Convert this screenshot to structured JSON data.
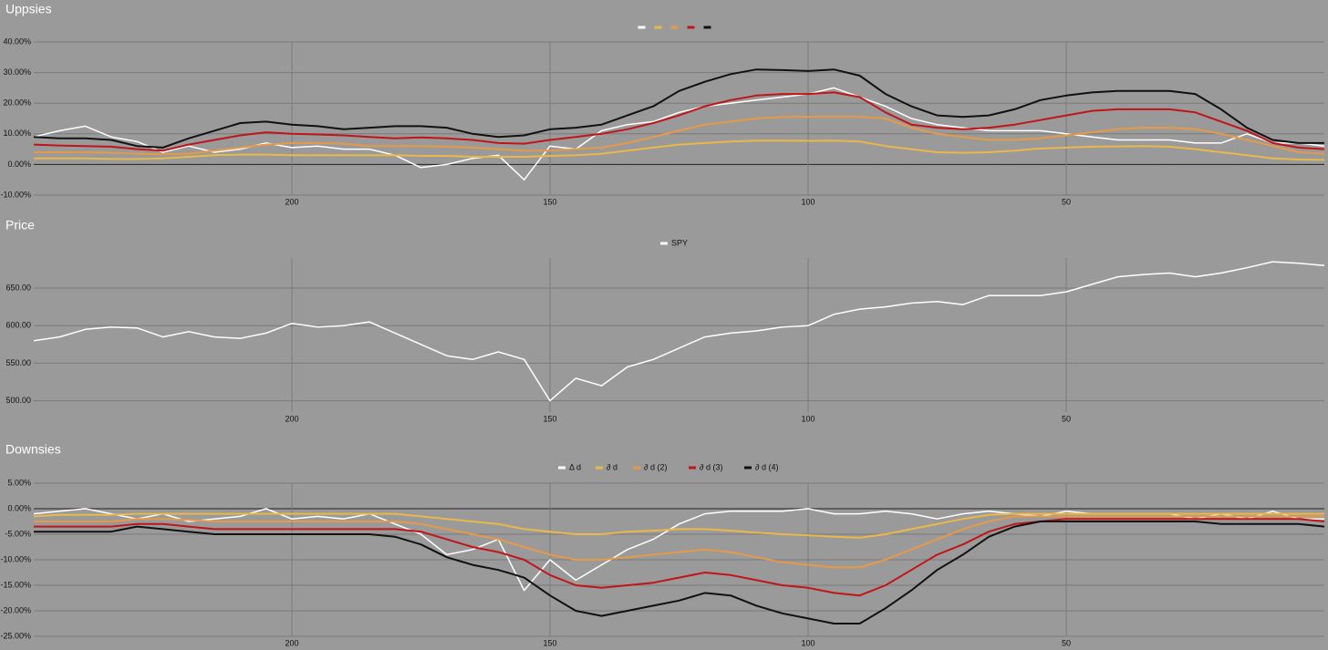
{
  "chart_data": [
    {
      "type": "line",
      "title": "Uppsies",
      "x": [
        250,
        245,
        240,
        235,
        230,
        225,
        220,
        215,
        210,
        205,
        200,
        195,
        190,
        185,
        180,
        175,
        170,
        165,
        160,
        155,
        150,
        145,
        140,
        135,
        130,
        125,
        120,
        115,
        110,
        105,
        100,
        95,
        90,
        85,
        80,
        75,
        70,
        65,
        60,
        55,
        50,
        45,
        40,
        35,
        30,
        25,
        20,
        15,
        10,
        5,
        0
      ],
      "xlim": [
        250,
        0
      ],
      "xticks": [
        200,
        150,
        100,
        50
      ],
      "ylim": [
        -10,
        40
      ],
      "yticks": [
        {
          "value": -10,
          "label": "-10.00%"
        },
        {
          "value": 0,
          "label": "0.00%"
        },
        {
          "value": 10,
          "label": "10.00%"
        },
        {
          "value": 20,
          "label": "20.00%"
        },
        {
          "value": 30,
          "label": "30.00%"
        },
        {
          "value": 40,
          "label": "40.00%"
        }
      ],
      "grid": true,
      "zero_line": true,
      "series": [
        {
          "color": "#ffffff",
          "values": [
            9,
            11,
            12.5,
            9,
            7.5,
            4,
            6,
            4,
            5,
            7,
            5.5,
            6,
            5,
            5,
            3,
            -1,
            0,
            2,
            3,
            -5,
            6,
            5,
            11,
            13,
            14,
            17,
            19,
            20,
            21,
            22,
            23,
            25,
            22,
            19,
            15,
            13,
            12,
            11,
            11,
            11,
            10,
            9,
            8,
            8,
            8,
            7,
            7,
            10,
            7,
            7,
            6
          ]
        },
        {
          "color": "#e8b84a",
          "values": [
            2,
            2,
            2,
            1.8,
            1.8,
            2,
            2.5,
            3,
            3.2,
            3.2,
            3,
            3,
            3,
            3,
            3,
            2.8,
            2.8,
            2.5,
            2.5,
            2.5,
            2.8,
            3,
            3.5,
            4.5,
            5.5,
            6.5,
            7,
            7.5,
            7.8,
            7.8,
            7.7,
            7.8,
            7.5,
            6,
            5,
            4,
            3.8,
            4,
            4.5,
            5.2,
            5.5,
            5.8,
            5.9,
            6,
            5.8,
            5,
            4,
            3,
            2,
            1.6,
            1.5
          ]
        },
        {
          "color": "#e59a4a",
          "values": [
            4,
            4,
            4,
            3.8,
            3.5,
            3.3,
            3.5,
            4.5,
            5.5,
            6.5,
            7,
            7,
            6.8,
            6,
            6,
            6,
            5.8,
            5.5,
            5,
            4.5,
            4.5,
            5,
            5.5,
            7,
            9,
            11,
            13,
            14,
            15,
            15.5,
            15.5,
            15.5,
            15.5,
            15,
            12,
            10,
            9,
            8,
            8,
            8.5,
            9.5,
            10.5,
            11.5,
            12,
            12,
            11.5,
            10,
            8,
            6,
            4,
            3.5
          ]
        },
        {
          "color": "#c0151a",
          "values": [
            6.5,
            6.2,
            6,
            5.8,
            5,
            4.5,
            6.5,
            8,
            9.5,
            10.5,
            10,
            9.8,
            9.5,
            9,
            8.5,
            8.8,
            8.5,
            8,
            7,
            6.8,
            8,
            9,
            10,
            11.5,
            13.5,
            16,
            19,
            21,
            22.5,
            23,
            23,
            23.5,
            22,
            17,
            13,
            12,
            11.5,
            12,
            13,
            14.5,
            16,
            17.5,
            18,
            18,
            18,
            17,
            14,
            11,
            7,
            5.5,
            5
          ]
        },
        {
          "color": "#111111",
          "values": [
            9,
            8.5,
            8.5,
            8,
            6,
            5.5,
            8.5,
            11,
            13.5,
            14,
            13,
            12.5,
            11.5,
            12,
            12.5,
            12.5,
            12,
            10,
            9,
            9.5,
            11.5,
            12,
            13,
            16,
            19,
            24,
            27,
            29.5,
            31,
            30.8,
            30.5,
            31,
            29,
            23,
            19,
            16,
            15.5,
            16,
            18,
            21,
            22.5,
            23.5,
            24,
            24,
            24,
            23,
            18,
            12,
            8,
            7,
            7
          ]
        }
      ]
    },
    {
      "type": "line",
      "title": "Price",
      "x": [
        250,
        245,
        240,
        235,
        230,
        225,
        220,
        215,
        210,
        205,
        200,
        195,
        190,
        185,
        180,
        175,
        170,
        165,
        160,
        155,
        150,
        145,
        140,
        135,
        130,
        125,
        120,
        115,
        110,
        105,
        100,
        95,
        90,
        85,
        80,
        75,
        70,
        65,
        60,
        55,
        50,
        45,
        40,
        35,
        30,
        25,
        20,
        15,
        10,
        5,
        0
      ],
      "xlim": [
        250,
        0
      ],
      "xticks": [
        200,
        150,
        100,
        50
      ],
      "ylim": [
        485,
        690
      ],
      "yticks": [
        {
          "value": 500,
          "label": "500.00"
        },
        {
          "value": 550,
          "label": "550.00"
        },
        {
          "value": 600,
          "label": "600.00"
        },
        {
          "value": 650,
          "label": "650.00"
        }
      ],
      "grid": true,
      "zero_line": false,
      "series": [
        {
          "name": "SPY",
          "color": "#ffffff",
          "values": [
            580,
            585,
            595,
            598,
            597,
            585,
            592,
            585,
            583,
            590,
            603,
            598,
            600,
            605,
            590,
            575,
            560,
            555,
            565,
            555,
            500,
            530,
            520,
            545,
            555,
            570,
            585,
            590,
            593,
            598,
            600,
            615,
            622,
            625,
            630,
            632,
            628,
            640,
            640,
            640,
            645,
            655,
            665,
            668,
            670,
            665,
            670,
            677,
            685,
            683,
            680
          ]
        }
      ]
    },
    {
      "type": "line",
      "title": "Downsies",
      "x": [
        250,
        245,
        240,
        235,
        230,
        225,
        220,
        215,
        210,
        205,
        200,
        195,
        190,
        185,
        180,
        175,
        170,
        165,
        160,
        155,
        150,
        145,
        140,
        135,
        130,
        125,
        120,
        115,
        110,
        105,
        100,
        95,
        90,
        85,
        80,
        75,
        70,
        65,
        60,
        55,
        50,
        45,
        40,
        35,
        30,
        25,
        20,
        15,
        10,
        5,
        0
      ],
      "xlim": [
        250,
        0
      ],
      "xticks": [
        200,
        150,
        100,
        50
      ],
      "ylim": [
        -25,
        5
      ],
      "yticks": [
        {
          "value": -25,
          "label": "-25.00%"
        },
        {
          "value": -20,
          "label": "-20.00%"
        },
        {
          "value": -15,
          "label": "-15.00%"
        },
        {
          "value": -10,
          "label": "-10.00%"
        },
        {
          "value": -5,
          "label": "-5.00%"
        },
        {
          "value": 0,
          "label": "0.00%"
        },
        {
          "value": 5,
          "label": "5.00%"
        }
      ],
      "grid": true,
      "zero_line": true,
      "series": [
        {
          "name": "Δ d",
          "color": "#ffffff",
          "values": [
            -1,
            -0.5,
            0,
            -1,
            -2,
            -1,
            -2.5,
            -2,
            -1.5,
            0,
            -2,
            -1.5,
            -2,
            -1,
            -3,
            -5,
            -9,
            -8,
            -6,
            -16,
            -10,
            -14,
            -11,
            -8,
            -6,
            -3,
            -1,
            -0.5,
            -0.5,
            -0.5,
            0,
            -1,
            -1,
            -0.5,
            -1,
            -2,
            -1,
            -0.5,
            -1,
            -1.5,
            -0.5,
            -1,
            -1,
            -1,
            -1,
            -2,
            -1,
            -2,
            -0.5,
            -2,
            -2
          ]
        },
        {
          "name": "∂ d",
          "color": "#e8b84a",
          "values": [
            -1.5,
            -1.2,
            -1.2,
            -1.2,
            -1,
            -1,
            -1,
            -1,
            -1,
            -1,
            -1,
            -1,
            -1,
            -1,
            -1,
            -1.5,
            -2,
            -2.5,
            -3,
            -4,
            -4.5,
            -5,
            -5,
            -4.5,
            -4.3,
            -4,
            -4,
            -4.3,
            -4.7,
            -5,
            -5.2,
            -5.5,
            -5.7,
            -5,
            -4,
            -3,
            -2,
            -1.2,
            -1,
            -1,
            -1,
            -1,
            -1,
            -1,
            -1,
            -1,
            -1,
            -1,
            -1,
            -1,
            -1
          ]
        },
        {
          "name": "∂ d (2)",
          "color": "#e59a4a",
          "values": [
            -2.5,
            -2.5,
            -2.5,
            -2.5,
            -2,
            -2,
            -2.2,
            -2.5,
            -2.5,
            -2.5,
            -2.5,
            -2.5,
            -2.5,
            -2.5,
            -2.5,
            -3,
            -4,
            -5,
            -6,
            -7.5,
            -9,
            -10,
            -10,
            -9.5,
            -9,
            -8.5,
            -8,
            -8.5,
            -9.5,
            -10.5,
            -11,
            -11.5,
            -11.5,
            -10,
            -8,
            -6,
            -4,
            -2.5,
            -1.5,
            -1.5,
            -1.5,
            -1.5,
            -1.5,
            -1.5,
            -1.5,
            -1.5,
            -1.5,
            -1.5,
            -1.5,
            -1.5,
            -1.5
          ]
        },
        {
          "name": "∂ d (3)",
          "color": "#c0151a",
          "values": [
            -3.5,
            -3.5,
            -3.5,
            -3.5,
            -3,
            -3,
            -3.5,
            -4,
            -4,
            -4,
            -4,
            -4,
            -4,
            -4,
            -4,
            -4.5,
            -6,
            -7.5,
            -8.5,
            -10,
            -13,
            -15,
            -15.5,
            -15,
            -14.5,
            -13.5,
            -12.5,
            -13,
            -14,
            -15,
            -15.5,
            -16.5,
            -17,
            -15,
            -12,
            -9,
            -7,
            -4.5,
            -3,
            -2.5,
            -2,
            -2,
            -2,
            -2,
            -2,
            -2,
            -2,
            -2,
            -2,
            -2,
            -2.5
          ]
        },
        {
          "name": "∂ d (4)",
          "color": "#111111",
          "values": [
            -4.5,
            -4.5,
            -4.5,
            -4.5,
            -3.5,
            -4,
            -4.5,
            -5,
            -5,
            -5,
            -5,
            -5,
            -5,
            -5,
            -5.5,
            -7,
            -9.5,
            -11,
            -12,
            -13.5,
            -17,
            -20,
            -21,
            -20,
            -19,
            -18,
            -16.5,
            -17,
            -19,
            -20.5,
            -21.5,
            -22.5,
            -22.5,
            -19.5,
            -16,
            -12,
            -9,
            -5.5,
            -3.5,
            -2.5,
            -2.5,
            -2.5,
            -2.5,
            -2.5,
            -2.5,
            -2.5,
            -3,
            -3,
            -3,
            -3,
            -3.5
          ]
        }
      ]
    }
  ]
}
